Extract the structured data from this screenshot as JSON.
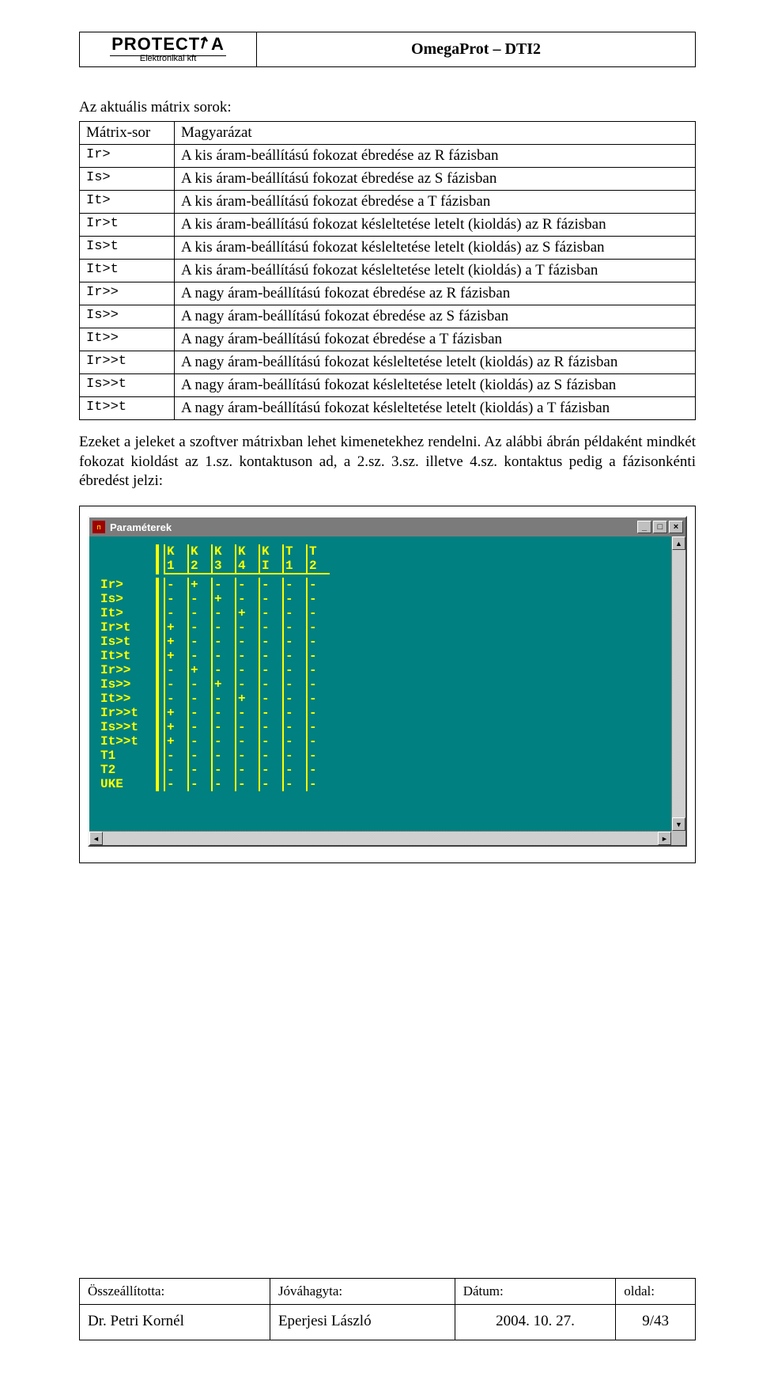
{
  "header": {
    "logo_main": "PROTECT",
    "logo_letter": "A",
    "logo_sub": "Elektronikai kft",
    "doc_title": "OmegaProt – DTI2"
  },
  "intro": "Az aktuális mátrix sorok:",
  "table": {
    "head": {
      "c1": "Mátrix-sor",
      "c2": "Magyarázat"
    },
    "rows": [
      {
        "code": "Ir>",
        "desc": "A kis áram-beállítású fokozat ébredése az R fázisban"
      },
      {
        "code": "Is>",
        "desc": "A kis áram-beállítású fokozat ébredése az S fázisban"
      },
      {
        "code": "It>",
        "desc": "A kis áram-beállítású fokozat ébredése a   T fázisban"
      },
      {
        "code": "Ir>t",
        "desc": "A kis áram-beállítású fokozat késleltetése letelt (kioldás) az R fázisban"
      },
      {
        "code": "Is>t",
        "desc": "A kis áram-beállítású fokozat késleltetése letelt (kioldás) az S fázisban"
      },
      {
        "code": "It>t",
        "desc": "A kis áram-beállítású fokozat késleltetése letelt (kioldás) a   T fázisban"
      },
      {
        "code": "Ir>>",
        "desc": "A nagy áram-beállítású fokozat ébredése az R fázisban"
      },
      {
        "code": "Is>>",
        "desc": "A nagy áram-beállítású fokozat ébredése az S fázisban"
      },
      {
        "code": "It>>",
        "desc": "A nagy áram-beállítású fokozat ébredése a   T fázisban"
      },
      {
        "code": "Ir>>t",
        "desc": "A nagy áram-beállítású fokozat késleltetése letelt (kioldás) az R fázisban"
      },
      {
        "code": "Is>>t",
        "desc": "A nagy áram-beállítású fokozat késleltetése letelt (kioldás) az S fázisban"
      },
      {
        "code": "It>>t",
        "desc": "A nagy áram-beállítású fokozat késleltetése letelt (kioldás) a   T fázisban"
      }
    ]
  },
  "paragraph": "Ezeket a jeleket a szoftver mátrixban lehet kimenetekhez rendelni. Az alábbi ábrán példaként mindkét fokozat kioldást az 1.sz. kontaktuson ad, a 2.sz. 3.sz. illetve 4.sz. kontaktus pedig a fázisonkénti ébredést jelzi:",
  "window": {
    "title": "Paraméterek",
    "columns_line1": [
      "K",
      "K",
      "K",
      "K",
      "K",
      "T",
      "T"
    ],
    "columns_line2": [
      "1",
      "2",
      "3",
      "4",
      "I",
      "1",
      "2"
    ],
    "rows": [
      {
        "label": "Ir>",
        "cells": [
          "-",
          "+",
          "-",
          "-",
          "-",
          "-",
          "-"
        ]
      },
      {
        "label": "Is>",
        "cells": [
          "-",
          "-",
          "+",
          "-",
          "-",
          "-",
          "-"
        ]
      },
      {
        "label": "It>",
        "cells": [
          "-",
          "-",
          "-",
          "+",
          "-",
          "-",
          "-"
        ]
      },
      {
        "label": "Ir>t",
        "cells": [
          "+",
          "-",
          "-",
          "-",
          "-",
          "-",
          "-"
        ]
      },
      {
        "label": "Is>t",
        "cells": [
          "+",
          "-",
          "-",
          "-",
          "-",
          "-",
          "-"
        ]
      },
      {
        "label": "It>t",
        "cells": [
          "+",
          "-",
          "-",
          "-",
          "-",
          "-",
          "-"
        ]
      },
      {
        "label": "Ir>>",
        "cells": [
          "-",
          "+",
          "-",
          "-",
          "-",
          "-",
          "-"
        ]
      },
      {
        "label": "Is>>",
        "cells": [
          "-",
          "-",
          "+",
          "-",
          "-",
          "-",
          "-"
        ]
      },
      {
        "label": "It>>",
        "cells": [
          "-",
          "-",
          "-",
          "+",
          "-",
          "-",
          "-"
        ]
      },
      {
        "label": "Ir>>t",
        "cells": [
          "+",
          "-",
          "-",
          "-",
          "-",
          "-",
          "-"
        ]
      },
      {
        "label": "Is>>t",
        "cells": [
          "+",
          "-",
          "-",
          "-",
          "-",
          "-",
          "-"
        ]
      },
      {
        "label": "It>>t",
        "cells": [
          "+",
          "-",
          "-",
          "-",
          "-",
          "-",
          "-"
        ]
      },
      {
        "label": "T1",
        "cells": [
          "-",
          "-",
          "-",
          "-",
          "-",
          "-",
          "-"
        ]
      },
      {
        "label": "T2",
        "cells": [
          "-",
          "-",
          "-",
          "-",
          "-",
          "-",
          "-"
        ]
      },
      {
        "label": "UKE",
        "cells": [
          "-",
          "-",
          "-",
          "-",
          "-",
          "-",
          "-"
        ]
      }
    ],
    "colors": {
      "titlebar_bg": "#7b7b7b",
      "body_bg": "#008080",
      "text": "#ffff00",
      "chrome": "#c0c0c0"
    }
  },
  "footer": {
    "head": [
      "Összeállította:",
      "Jóváhagyta:",
      "Dátum:",
      "oldal:"
    ],
    "vals": [
      "Dr. Petri Kornél",
      "Eperjesi László",
      "2004. 10. 27.",
      "9/43"
    ]
  }
}
